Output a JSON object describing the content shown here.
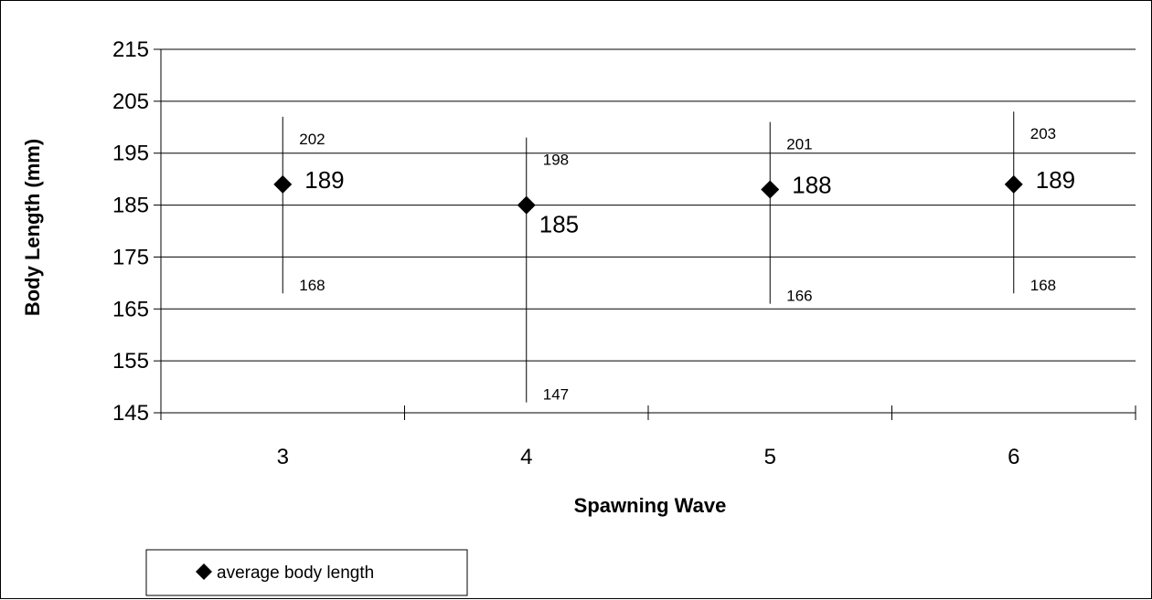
{
  "chart_data": {
    "type": "scatter",
    "title": "",
    "xlabel": "Spawning Wave",
    "ylabel": "Body Length (mm)",
    "categories": [
      "3",
      "4",
      "5",
      "6"
    ],
    "yticks": [
      "145",
      "155",
      "165",
      "175",
      "185",
      "195",
      "205",
      "215"
    ],
    "ylim": [
      145,
      215
    ],
    "grid": true,
    "legend_position": "bottom-left",
    "series": [
      {
        "name": "average body length",
        "marker": "diamond",
        "color": "#000000",
        "values": [
          189,
          185,
          188,
          189
        ],
        "value_labels": [
          "189",
          "185",
          "188",
          "189"
        ],
        "max": [
          202,
          198,
          201,
          203
        ],
        "max_labels": [
          "202",
          "198",
          "201",
          "203"
        ],
        "min": [
          168,
          147,
          166,
          168
        ],
        "min_labels": [
          "168",
          "147",
          "166",
          "168"
        ]
      }
    ]
  }
}
